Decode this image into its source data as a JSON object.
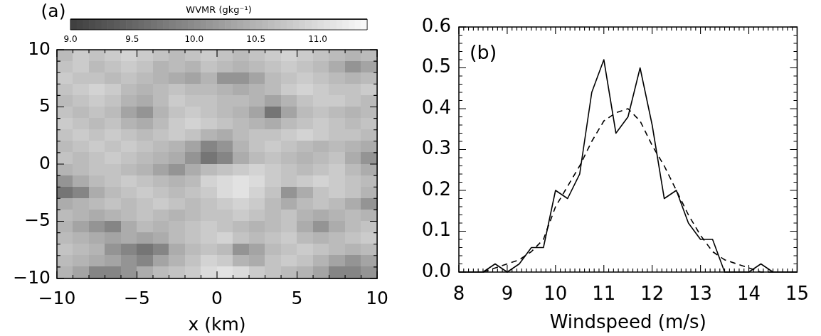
{
  "chart_data": [
    {
      "type": "heatmap",
      "xlabel": "x (km)",
      "clabel": "WVMR (gkg⁻¹)",
      "annotations": [
        "(a)"
      ],
      "cells": [
        [
          10.6,
          10.8,
          10.7,
          10.8,
          10.9,
          10.8,
          10.7,
          10.6,
          10.7,
          10.8,
          10.7,
          10.6,
          10.7,
          10.8,
          10.9,
          10.8,
          10.7,
          10.6,
          10.5,
          10.6
        ],
        [
          10.7,
          10.8,
          10.6,
          10.7,
          10.8,
          10.7,
          10.5,
          10.6,
          10.5,
          10.7,
          10.6,
          10.5,
          10.6,
          10.7,
          10.8,
          10.7,
          10.6,
          10.4,
          10.1,
          10.3
        ],
        [
          10.8,
          10.7,
          10.7,
          10.6,
          10.7,
          10.6,
          10.5,
          10.4,
          10.3,
          10.5,
          10.1,
          10.1,
          10.3,
          10.6,
          10.7,
          10.8,
          10.7,
          10.6,
          10.5,
          10.6
        ],
        [
          10.7,
          10.8,
          10.9,
          10.8,
          10.6,
          10.5,
          10.6,
          10.7,
          10.6,
          10.6,
          10.5,
          10.4,
          10.5,
          10.6,
          10.8,
          10.9,
          10.8,
          10.7,
          10.7,
          10.8
        ],
        [
          10.6,
          10.7,
          10.8,
          10.7,
          10.5,
          10.4,
          10.6,
          10.8,
          10.7,
          10.7,
          10.6,
          10.6,
          10.5,
          10.3,
          10.5,
          10.7,
          10.8,
          10.8,
          10.7,
          10.6
        ],
        [
          10.7,
          10.6,
          10.7,
          10.6,
          10.3,
          10.1,
          10.5,
          10.7,
          10.8,
          10.7,
          10.6,
          10.5,
          10.3,
          9.7,
          10.3,
          10.6,
          10.7,
          10.6,
          10.5,
          10.6
        ],
        [
          10.8,
          10.7,
          10.6,
          10.7,
          10.5,
          10.4,
          10.6,
          10.8,
          10.9,
          10.8,
          10.7,
          10.6,
          10.5,
          10.4,
          10.6,
          10.7,
          10.8,
          10.7,
          10.6,
          10.7
        ],
        [
          10.7,
          10.8,
          10.7,
          10.8,
          10.7,
          10.6,
          10.7,
          10.8,
          10.7,
          10.5,
          10.4,
          10.6,
          10.7,
          10.7,
          10.8,
          10.9,
          10.8,
          10.7,
          10.7,
          10.6
        ],
        [
          10.6,
          10.7,
          10.8,
          10.7,
          10.8,
          10.7,
          10.6,
          10.5,
          10.3,
          9.9,
          10.1,
          10.5,
          10.7,
          10.8,
          10.7,
          10.6,
          10.5,
          10.6,
          10.5,
          10.4
        ],
        [
          10.7,
          10.6,
          10.7,
          10.8,
          10.7,
          10.6,
          10.5,
          10.4,
          10.1,
          9.7,
          9.9,
          10.4,
          10.6,
          10.7,
          10.6,
          10.5,
          10.6,
          10.7,
          10.4,
          10.1
        ],
        [
          10.5,
          10.6,
          10.7,
          10.7,
          10.6,
          10.5,
          10.3,
          10.1,
          10.4,
          10.6,
          10.7,
          10.8,
          10.9,
          10.8,
          10.7,
          10.6,
          10.7,
          10.8,
          10.6,
          10.4
        ],
        [
          10.1,
          10.4,
          10.6,
          10.7,
          10.8,
          10.7,
          10.6,
          10.5,
          10.6,
          10.9,
          11.0,
          11.1,
          11.0,
          10.8,
          10.7,
          10.8,
          10.9,
          10.8,
          10.7,
          10.6
        ],
        [
          9.7,
          9.9,
          10.4,
          10.6,
          10.7,
          10.8,
          10.7,
          10.6,
          10.7,
          10.8,
          11.0,
          11.1,
          10.9,
          10.7,
          10.1,
          10.4,
          10.7,
          10.8,
          10.7,
          10.5
        ],
        [
          10.4,
          10.5,
          10.6,
          10.7,
          10.6,
          10.7,
          10.8,
          10.7,
          10.6,
          10.7,
          10.8,
          10.9,
          10.8,
          10.6,
          10.4,
          10.6,
          10.7,
          10.6,
          10.4,
          10.1
        ],
        [
          10.6,
          10.5,
          10.4,
          10.5,
          10.6,
          10.7,
          10.6,
          10.5,
          10.6,
          10.7,
          10.7,
          10.8,
          10.7,
          10.6,
          10.7,
          10.5,
          10.4,
          10.5,
          10.6,
          10.5
        ],
        [
          10.5,
          10.3,
          10.1,
          9.9,
          10.4,
          10.6,
          10.5,
          10.6,
          10.7,
          10.8,
          10.7,
          10.6,
          10.5,
          10.6,
          10.7,
          10.4,
          10.1,
          10.4,
          10.6,
          10.7
        ],
        [
          10.6,
          10.5,
          10.4,
          10.3,
          10.4,
          10.3,
          10.4,
          10.6,
          10.7,
          10.8,
          10.9,
          10.7,
          10.6,
          10.7,
          10.8,
          10.6,
          10.5,
          10.6,
          10.7,
          10.8
        ],
        [
          10.7,
          10.6,
          10.5,
          10.1,
          9.9,
          9.7,
          9.9,
          10.4,
          10.6,
          10.7,
          10.6,
          10.1,
          10.3,
          10.6,
          10.7,
          10.8,
          10.7,
          10.6,
          10.5,
          10.6
        ],
        [
          10.6,
          10.5,
          10.4,
          10.3,
          10.1,
          9.9,
          10.3,
          10.5,
          10.7,
          10.9,
          10.8,
          10.5,
          10.4,
          10.7,
          10.8,
          10.7,
          10.5,
          10.3,
          10.1,
          10.3
        ],
        [
          10.5,
          10.3,
          9.9,
          9.9,
          10.1,
          10.4,
          10.6,
          10.7,
          10.8,
          11.0,
          11.1,
          11.0,
          10.8,
          10.7,
          10.6,
          10.5,
          10.3,
          9.9,
          9.9,
          10.1
        ]
      ],
      "xlim": [
        -10,
        10
      ],
      "ylim": [
        -10,
        10
      ],
      "xticks": [
        {
          "value": -10,
          "label": "−10"
        },
        {
          "value": -9,
          "label": null
        },
        {
          "value": -8,
          "label": null
        },
        {
          "value": -7,
          "label": null
        },
        {
          "value": -6,
          "label": null
        },
        {
          "value": -5,
          "label": "−5"
        },
        {
          "value": -4,
          "label": null
        },
        {
          "value": -3,
          "label": null
        },
        {
          "value": -2,
          "label": null
        },
        {
          "value": -1,
          "label": null
        },
        0,
        {
          "value": 1,
          "label": null
        },
        {
          "value": 2,
          "label": null
        },
        {
          "value": 3,
          "label": null
        },
        {
          "value": 4,
          "label": null
        },
        5,
        {
          "value": 6,
          "label": null
        },
        {
          "value": 7,
          "label": null
        },
        {
          "value": 8,
          "label": null
        },
        {
          "value": 9,
          "label": null
        },
        10
      ],
      "yticks": [
        {
          "value": -10,
          "label": "−10"
        },
        {
          "value": -9,
          "label": null
        },
        {
          "value": -8,
          "label": null
        },
        {
          "value": -7,
          "label": null
        },
        {
          "value": -6,
          "label": null
        },
        {
          "value": -5,
          "label": "−5"
        },
        {
          "value": -4,
          "label": null
        },
        {
          "value": -3,
          "label": null
        },
        {
          "value": -2,
          "label": null
        },
        {
          "value": -1,
          "label": null
        },
        0,
        {
          "value": 1,
          "label": null
        },
        {
          "value": 2,
          "label": null
        },
        {
          "value": 3,
          "label": null
        },
        {
          "value": 4,
          "label": null
        },
        5,
        {
          "value": 6,
          "label": null
        },
        {
          "value": 7,
          "label": null
        },
        {
          "value": 8,
          "label": null
        },
        {
          "value": 9,
          "label": null
        },
        10
      ],
      "clim": [
        9.0,
        11.4
      ],
      "cticks": [
        {
          "value": 9,
          "label": "9.0"
        },
        9.5,
        {
          "value": 10,
          "label": "10.0"
        },
        10.5,
        {
          "value": 11,
          "label": "11.0"
        }
      ]
    },
    {
      "type": "line",
      "xlabel": "Windspeed (m/s)",
      "annotations": [
        "(b)"
      ],
      "series": [
        {
          "color": "#000000",
          "line_style": "solid",
          "x": [
            8,
            8.25,
            8.5,
            8.75,
            9,
            9.25,
            9.5,
            9.75,
            10,
            10.25,
            10.5,
            10.75,
            11,
            11.25,
            11.5,
            11.75,
            12,
            12.25,
            12.5,
            12.75,
            13,
            13.25,
            13.5,
            13.75,
            14,
            14.25,
            14.5,
            14.75,
            15
          ],
          "values": [
            0,
            0,
            0,
            0.02,
            0,
            0.02,
            0.06,
            0.06,
            0.2,
            0.18,
            0.24,
            0.44,
            0.52,
            0.34,
            0.38,
            0.5,
            0.36,
            0.18,
            0.2,
            0.12,
            0.08,
            0.08,
            0,
            0,
            0,
            0.02,
            0,
            0,
            0
          ]
        },
        {
          "color": "#000000",
          "line_style": "dashed",
          "x": [
            8.5,
            8.75,
            9,
            9.25,
            9.5,
            9.75,
            10,
            10.25,
            10.5,
            10.75,
            11,
            11.25,
            11.5,
            11.75,
            12,
            12.25,
            12.5,
            12.75,
            13,
            13.25,
            13.5,
            13.75,
            14,
            14.25,
            14.5
          ],
          "values": [
            0,
            0.01,
            0.02,
            0.03,
            0.05,
            0.08,
            0.16,
            0.21,
            0.26,
            0.32,
            0.37,
            0.39,
            0.4,
            0.37,
            0.31,
            0.26,
            0.2,
            0.14,
            0.09,
            0.05,
            0.03,
            0.02,
            0.01,
            0,
            0
          ]
        }
      ],
      "xlim": [
        8,
        15
      ],
      "ylim": [
        0,
        0.6
      ],
      "xticks": [
        8,
        {
          "value": 8.1,
          "label": null
        },
        {
          "value": 8.2,
          "label": null
        },
        {
          "value": 8.3,
          "label": null
        },
        {
          "value": 8.4,
          "label": null
        },
        {
          "value": 8.5,
          "label": null
        },
        {
          "value": 8.6,
          "label": null
        },
        {
          "value": 8.7,
          "label": null
        },
        {
          "value": 8.8,
          "label": null
        },
        {
          "value": 8.9,
          "label": null
        },
        9,
        {
          "value": 9.1,
          "label": null
        },
        {
          "value": 9.2,
          "label": null
        },
        {
          "value": 9.3,
          "label": null
        },
        {
          "value": 9.4,
          "label": null
        },
        {
          "value": 9.5,
          "label": null
        },
        {
          "value": 9.6,
          "label": null
        },
        {
          "value": 9.7,
          "label": null
        },
        {
          "value": 9.8,
          "label": null
        },
        {
          "value": 9.9,
          "label": null
        },
        10,
        {
          "value": 10.1,
          "label": null
        },
        {
          "value": 10.2,
          "label": null
        },
        {
          "value": 10.3,
          "label": null
        },
        {
          "value": 10.4,
          "label": null
        },
        {
          "value": 10.5,
          "label": null
        },
        {
          "value": 10.6,
          "label": null
        },
        {
          "value": 10.7,
          "label": null
        },
        {
          "value": 10.8,
          "label": null
        },
        {
          "value": 10.9,
          "label": null
        },
        11,
        {
          "value": 11.1,
          "label": null
        },
        {
          "value": 11.2,
          "label": null
        },
        {
          "value": 11.3,
          "label": null
        },
        {
          "value": 11.4,
          "label": null
        },
        {
          "value": 11.5,
          "label": null
        },
        {
          "value": 11.6,
          "label": null
        },
        {
          "value": 11.7,
          "label": null
        },
        {
          "value": 11.8,
          "label": null
        },
        {
          "value": 11.9,
          "label": null
        },
        12,
        {
          "value": 12.1,
          "label": null
        },
        {
          "value": 12.2,
          "label": null
        },
        {
          "value": 12.3,
          "label": null
        },
        {
          "value": 12.4,
          "label": null
        },
        {
          "value": 12.5,
          "label": null
        },
        {
          "value": 12.6,
          "label": null
        },
        {
          "value": 12.7,
          "label": null
        },
        {
          "value": 12.8,
          "label": null
        },
        {
          "value": 12.9,
          "label": null
        },
        13,
        {
          "value": 13.1,
          "label": null
        },
        {
          "value": 13.2,
          "label": null
        },
        {
          "value": 13.3,
          "label": null
        },
        {
          "value": 13.4,
          "label": null
        },
        {
          "value": 13.5,
          "label": null
        },
        {
          "value": 13.6,
          "label": null
        },
        {
          "value": 13.7,
          "label": null
        },
        {
          "value": 13.8,
          "label": null
        },
        {
          "value": 13.9,
          "label": null
        },
        14,
        {
          "value": 14.1,
          "label": null
        },
        {
          "value": 14.2,
          "label": null
        },
        {
          "value": 14.3,
          "label": null
        },
        {
          "value": 14.4,
          "label": null
        },
        {
          "value": 14.5,
          "label": null
        },
        {
          "value": 14.6,
          "label": null
        },
        {
          "value": 14.7,
          "label": null
        },
        {
          "value": 14.8,
          "label": null
        },
        {
          "value": 14.9,
          "label": null
        },
        15
      ],
      "yticks": [
        {
          "value": 0,
          "label": "0.0"
        },
        {
          "value": 0.02,
          "label": null
        },
        {
          "value": 0.04,
          "label": null
        },
        {
          "value": 0.06,
          "label": null
        },
        {
          "value": 0.08,
          "label": null
        },
        0.1,
        {
          "value": 0.12,
          "label": null
        },
        {
          "value": 0.14,
          "label": null
        },
        {
          "value": 0.16,
          "label": null
        },
        {
          "value": 0.18,
          "label": null
        },
        0.2,
        {
          "value": 0.22,
          "label": null
        },
        {
          "value": 0.24,
          "label": null
        },
        {
          "value": 0.26,
          "label": null
        },
        {
          "value": 0.28,
          "label": null
        },
        0.3,
        {
          "value": 0.32,
          "label": null
        },
        {
          "value": 0.34,
          "label": null
        },
        {
          "value": 0.36,
          "label": null
        },
        {
          "value": 0.38,
          "label": null
        },
        0.4,
        {
          "value": 0.42,
          "label": null
        },
        {
          "value": 0.44,
          "label": null
        },
        {
          "value": 0.46,
          "label": null
        },
        {
          "value": 0.48,
          "label": null
        },
        0.5,
        {
          "value": 0.52,
          "label": null
        },
        {
          "value": 0.54,
          "label": null
        },
        {
          "value": 0.56,
          "label": null
        },
        {
          "value": 0.58,
          "label": null
        },
        0.6
      ]
    }
  ]
}
